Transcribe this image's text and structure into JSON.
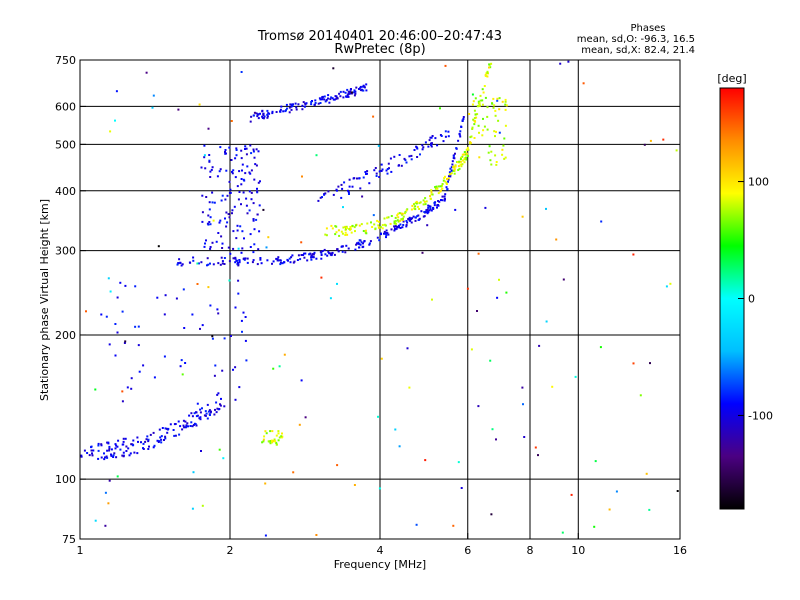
{
  "header": {
    "title_line1": "Tromsø 20140401 20:46:00–20:47:43",
    "title_line2": "RwPretec (8p)",
    "stats_title": "Phases",
    "stats_line1": "mean, sd,O: -96.3, 16.5",
    "stats_line2": "mean, sd,X:  82.4, 21.4"
  },
  "chart_data": {
    "type": "scatter",
    "title": "Tromsø 20140401 20:46:00–20:47:43",
    "subtitle": "RwPretec (8p)",
    "xlabel": "Frequency [MHz]",
    "ylabel": "Stationary phase Virtual Height [km]",
    "x_scale": "log",
    "y_scale": "log",
    "xlim": [
      1,
      16
    ],
    "ylim": [
      75,
      750
    ],
    "x_ticks": [
      1,
      2,
      4,
      6,
      8,
      10,
      16
    ],
    "y_ticks": [
      75,
      100,
      200,
      300,
      400,
      500,
      600,
      750
    ],
    "x_gridlines": [
      2,
      4,
      6,
      8,
      10
    ],
    "y_gridlines": [
      100,
      200,
      300,
      400,
      500,
      600
    ],
    "grid": true,
    "colorbar": {
      "label": "[deg]",
      "min": -180,
      "max": 180,
      "ticks": [
        -100,
        0,
        100
      ],
      "colors": [
        "#000000",
        "#4b0082",
        "#0000ff",
        "#00bfff",
        "#00ffff",
        "#00ff00",
        "#ffff00",
        "#ff8c00",
        "#ff0000"
      ]
    },
    "series": [
      {
        "name": "O",
        "phase_mean": -96.3,
        "phase_sd": 16.5
      },
      {
        "name": "X",
        "phase_mean": 82.4,
        "phase_sd": 21.4
      }
    ]
  }
}
